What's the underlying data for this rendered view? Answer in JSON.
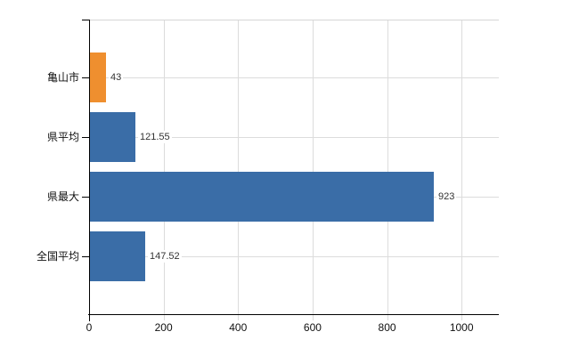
{
  "chart_data": {
    "type": "bar",
    "orientation": "horizontal",
    "title": "",
    "xlabel": "",
    "ylabel": "",
    "categories": [
      "亀山市",
      "県平均",
      "県最大",
      "全国平均"
    ],
    "values": [
      43,
      121.55,
      923,
      147.52
    ],
    "value_labels": [
      "43",
      "121.55",
      "923",
      "147.52"
    ],
    "bar_colors": [
      "#ef8f2f",
      "#3a6da7",
      "#3a6da7",
      "#3a6da7"
    ],
    "x_ticks": [
      0,
      200,
      400,
      600,
      800,
      1000
    ],
    "x_tick_labels": [
      "0",
      "200",
      "400",
      "600",
      "800",
      "1000"
    ],
    "xlim": [
      0,
      1100
    ],
    "grid": true,
    "legend": "none"
  },
  "colors": {
    "bar_blue": "#3a6da7",
    "bar_orange": "#ef8f2f",
    "gridline": "#dcdcdc",
    "axis": "#000000",
    "background": "#ffffff",
    "value_text": "#333333",
    "label_text": "#111111"
  }
}
